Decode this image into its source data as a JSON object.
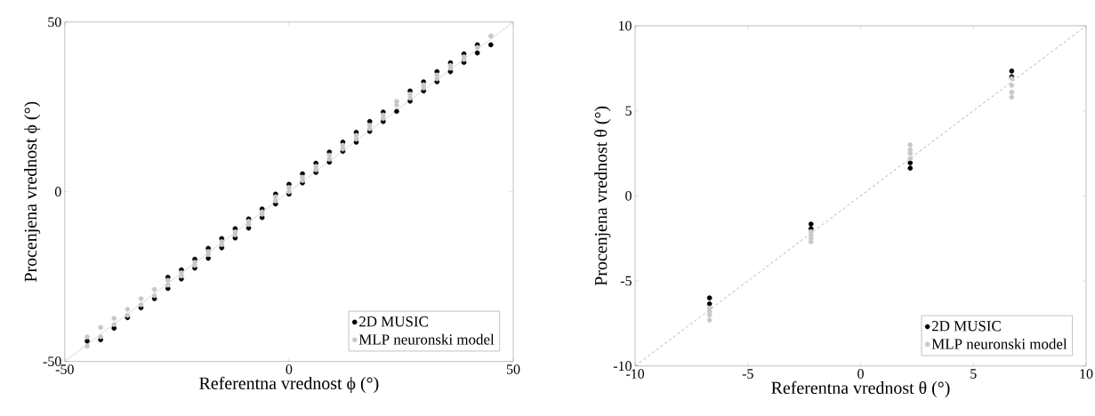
{
  "chart_data": [
    {
      "type": "scatter",
      "xlabel": "Referentna vrednost ϕ (°)",
      "ylabel": "Procenjena vrednost ϕ (°)",
      "xlim": [
        -50,
        50
      ],
      "ylim": [
        -50,
        50
      ],
      "xticks": [
        -50,
        0,
        50
      ],
      "yticks": [
        -50,
        0,
        50
      ],
      "legend": "bottom right",
      "series": [
        {
          "name": "2D MUSIC",
          "color": "#000000",
          "marker": "circle",
          "x": [
            -45,
            -42,
            -39,
            -36,
            -33,
            -30,
            -27,
            -27,
            -24,
            -24,
            -21,
            -21,
            -18,
            -18,
            -15,
            -15,
            -12,
            -12,
            -9,
            -9,
            -6,
            -6,
            -3,
            -3,
            0,
            0,
            3,
            3,
            6,
            6,
            9,
            9,
            12,
            12,
            15,
            15,
            18,
            18,
            21,
            21,
            24,
            27,
            27,
            30,
            30,
            33,
            33,
            36,
            36,
            39,
            39,
            42,
            42,
            45
          ],
          "values": [
            -44,
            -43.6,
            -40.2,
            -37.1,
            -34.2,
            -31.5,
            -25.2,
            -28.5,
            -23,
            -25.7,
            -19.9,
            -22.5,
            -16.7,
            -19.6,
            -13.8,
            -16.5,
            -10.9,
            -13.6,
            -8,
            -10.7,
            -5.1,
            -7.6,
            -0.7,
            -3.6,
            2.2,
            -0.7,
            5.3,
            2.6,
            8.4,
            5.7,
            11.7,
            8.7,
            14.6,
            11.9,
            17.5,
            14.6,
            20.7,
            17.8,
            23.5,
            20.7,
            23.7,
            29.7,
            26.7,
            32.4,
            29.7,
            35.4,
            32.4,
            38,
            35.4,
            40.6,
            38.1,
            43.3,
            40.9,
            43.3
          ]
        },
        {
          "name": "MLP neuronski model",
          "color": "#c8c8c8",
          "marker": "circle",
          "x": [
            -45,
            -45,
            -42,
            -42,
            -39,
            -39,
            -36,
            -36,
            -33,
            -33,
            -30,
            -30,
            -27,
            -27,
            -24,
            -24,
            -21,
            -21,
            -18,
            -18,
            -15,
            -15,
            -12,
            -12,
            -9,
            -9,
            -6,
            -6,
            -3,
            -3,
            0,
            0,
            3,
            3,
            6,
            6,
            9,
            9,
            12,
            12,
            15,
            15,
            18,
            18,
            21,
            21,
            24,
            24,
            27,
            27,
            30,
            30,
            33,
            33,
            36,
            36,
            39,
            39,
            42,
            45
          ],
          "values": [
            -42.8,
            -45.5,
            -40,
            -42.7,
            -37.3,
            -39.1,
            -34.6,
            -36.4,
            -31.5,
            -33.3,
            -28.8,
            -30.6,
            -26.1,
            -27.5,
            -23.9,
            -24.8,
            -20.8,
            -21.7,
            -17.6,
            -18.5,
            -14.7,
            -15.6,
            -11.8,
            -12.7,
            -8.7,
            -9.6,
            -5.9,
            -6.6,
            -1.5,
            -2.7,
            1.3,
            0,
            4.3,
            3.3,
            7.5,
            6.5,
            10.8,
            9.6,
            13.7,
            12.6,
            16.6,
            15.5,
            19.6,
            18.6,
            22.6,
            21.6,
            26.6,
            25.5,
            28.8,
            27.6,
            31.5,
            30.6,
            34.4,
            33.3,
            37.2,
            36.4,
            39.8,
            39,
            42.5,
            45.9
          ]
        },
        {
          "type": "line",
          "color": "#a0a0a0",
          "line_style": "solid",
          "marker": "none",
          "x": [
            -50,
            50
          ],
          "values": [
            -50,
            50
          ]
        }
      ]
    },
    {
      "type": "scatter",
      "xlabel": "Referentna vrednost θ (°)",
      "ylabel": "Procenjena vrednost θ (°)",
      "xlim": [
        -10,
        10
      ],
      "ylim": [
        -10,
        10
      ],
      "xticks": [
        -10,
        -5,
        0,
        5,
        10
      ],
      "yticks": [
        -10,
        -5,
        0,
        5,
        10
      ],
      "legend": "bottom right",
      "series": [
        {
          "name": "2D MUSIC",
          "color": "#000000",
          "marker": "circle",
          "x": [
            -6.7,
            -6.7,
            -2.2,
            -2.2,
            2.2,
            2.2,
            6.7,
            6.7
          ],
          "values": [
            -6,
            -6.35,
            -1.66,
            -1.93,
            1.94,
            1.63,
            7.34,
            7
          ]
        },
        {
          "name": "MLP neuronski model",
          "color": "#c8c8c8",
          "marker": "circle",
          "x": [
            -6.7,
            -6.7,
            -6.7,
            -6.7,
            -2.2,
            -2.2,
            -2.2,
            -2.2,
            2.2,
            2.2,
            2.2,
            2.2,
            6.7,
            6.7,
            6.7,
            6.7
          ],
          "values": [
            -6.6,
            -6.8,
            -7,
            -7.3,
            -2.1,
            -2.3,
            -2.5,
            -2.7,
            3,
            2.7,
            2.5,
            2.2,
            6.9,
            6.5,
            6.1,
            5.8
          ]
        },
        {
          "type": "line",
          "color": "#404040",
          "line_style": "dashed",
          "marker": "none",
          "x": [
            -10,
            10
          ],
          "values": [
            -10,
            10
          ]
        }
      ]
    }
  ]
}
